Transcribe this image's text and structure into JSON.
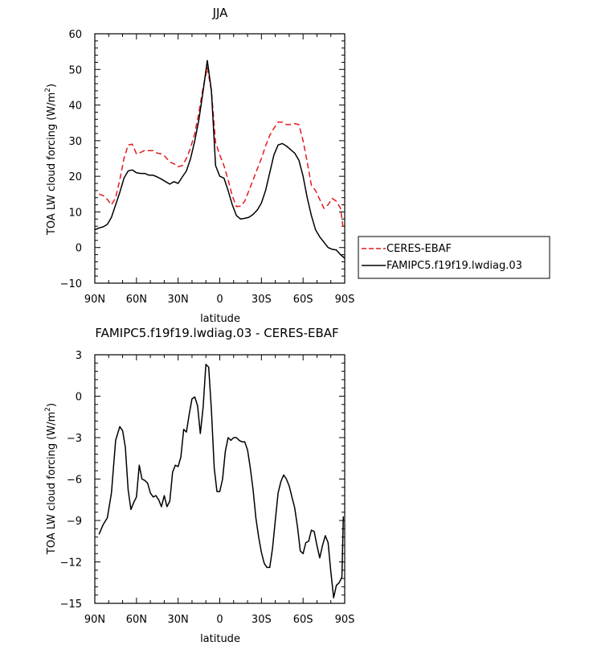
{
  "chart_data": [
    {
      "type": "line",
      "title": "JJA",
      "xlabel": "latitude",
      "ylabel": "TOA LW cloud forcing (W/m²)",
      "ylabel_main": "TOA LW cloud forcing (W/m",
      "ylabel_sup": "2",
      "ylabel_end": ")",
      "xlim": [
        90,
        -90
      ],
      "ylim": [
        -10,
        60
      ],
      "xticks": [
        90,
        60,
        30,
        0,
        -30,
        -60,
        -90
      ],
      "xtick_labels": [
        "90N",
        "60N",
        "30N",
        "0",
        "30S",
        "60S",
        "90S"
      ],
      "yticks": [
        -10,
        0,
        10,
        20,
        30,
        40,
        50,
        60
      ],
      "ytick_labels": [
        "−10",
        "0",
        "10",
        "20",
        "30",
        "40",
        "50",
        "60"
      ],
      "legend_position": "right",
      "series": [
        {
          "name": "CERES-EBAF",
          "color": "#e41a1c",
          "dash": "dashed",
          "x": [
            87,
            84,
            81,
            78,
            75,
            72,
            69,
            66,
            63,
            60,
            57,
            54,
            51,
            48,
            45,
            42,
            39,
            36,
            33,
            30,
            27,
            24,
            21,
            18,
            15,
            12,
            9,
            6,
            3,
            0,
            -3,
            -6,
            -9,
            -12,
            -15,
            -18,
            -21,
            -24,
            -27,
            -30,
            -33,
            -36,
            -39,
            -42,
            -45,
            -48,
            -51,
            -54,
            -57,
            -60,
            -63,
            -66,
            -69,
            -72,
            -75,
            -78,
            -81,
            -84,
            -87,
            -89
          ],
          "y": [
            15,
            14.6,
            13.5,
            12,
            14,
            19,
            25,
            28.8,
            29,
            26.3,
            26.7,
            27.3,
            27.2,
            27.2,
            26.5,
            26.3,
            25.4,
            24,
            23.5,
            22.7,
            23,
            25,
            28,
            32,
            38,
            45,
            50.5,
            44,
            29.5,
            26,
            23,
            19,
            14.5,
            11.5,
            11.6,
            13,
            16,
            19,
            22,
            25,
            28.5,
            31.5,
            33.5,
            35.2,
            35.2,
            34.5,
            34.5,
            34.8,
            34.5,
            30,
            24,
            17.5,
            16,
            13.5,
            11,
            12,
            13.8,
            13,
            11,
            5
          ]
        },
        {
          "name": "FAMIPC5.f19f19.lwdiag.03",
          "color": "#000000",
          "dash": "solid",
          "x": [
            90,
            87,
            84,
            81,
            78,
            75,
            72,
            69,
            66,
            63,
            60,
            57,
            54,
            51,
            48,
            45,
            42,
            39,
            36,
            33,
            30,
            27,
            24,
            21,
            18,
            15,
            12,
            9,
            6,
            3,
            0,
            -3,
            -6,
            -9,
            -12,
            -15,
            -18,
            -21,
            -24,
            -27,
            -30,
            -33,
            -36,
            -39,
            -42,
            -45,
            -48,
            -51,
            -54,
            -57,
            -60,
            -63,
            -66,
            -69,
            -72,
            -75,
            -78,
            -81,
            -84,
            -87,
            -90
          ],
          "y": [
            5,
            5.5,
            5.8,
            6.5,
            8.5,
            12,
            15.5,
            19.5,
            21.5,
            21.8,
            21,
            20.8,
            20.8,
            20.3,
            20.3,
            19.8,
            19.2,
            18.5,
            17.8,
            18.5,
            18,
            19.8,
            21.5,
            25,
            30,
            36,
            44,
            52.5,
            44,
            23,
            20,
            19.5,
            16,
            12,
            9,
            8,
            8.2,
            8.5,
            9.3,
            10.5,
            12.5,
            16,
            21,
            26,
            28.8,
            29.2,
            28.5,
            27.5,
            26.5,
            24.5,
            20,
            14,
            9,
            5,
            3,
            1.5,
            0,
            -0.5,
            -0.7,
            -2,
            -3
          ]
        }
      ]
    },
    {
      "type": "line",
      "title": "FAMIPC5.f19f19.lwdiag.03 - CERES-EBAF",
      "xlabel": "latitude",
      "ylabel": "TOA LW cloud forcing (W/m²)",
      "ylabel_main": "TOA LW cloud forcing (W/m",
      "ylabel_sup": "2",
      "ylabel_end": ")",
      "xlim": [
        90,
        -90
      ],
      "ylim": [
        -15,
        3
      ],
      "xticks": [
        90,
        60,
        30,
        0,
        -30,
        -60,
        -90
      ],
      "xtick_labels": [
        "90N",
        "60N",
        "30N",
        "0",
        "30S",
        "60S",
        "90S"
      ],
      "yticks": [
        -15,
        -12,
        -9,
        -6,
        -3,
        0,
        3
      ],
      "ytick_labels": [
        "−15",
        "−12",
        "−9",
        "−6",
        "−3",
        "0",
        "3"
      ],
      "series": [
        {
          "color": "#000000",
          "dash": "solid",
          "x": [
            87,
            84,
            81,
            78,
            75,
            72,
            70,
            68,
            66,
            64,
            62,
            60,
            58,
            56,
            54,
            52,
            50,
            48,
            46,
            44,
            42,
            40,
            38,
            36,
            34,
            32,
            30,
            28,
            26,
            24,
            22,
            20,
            18,
            16,
            14,
            12,
            10,
            8,
            6,
            4,
            2,
            0,
            -2,
            -4,
            -6,
            -8,
            -10,
            -12,
            -14,
            -16,
            -18,
            -20,
            -22,
            -24,
            -26,
            -28,
            -30,
            -32,
            -34,
            -36,
            -38,
            -40,
            -42,
            -44,
            -46,
            -48,
            -50,
            -52,
            -54,
            -56,
            -58,
            -60,
            -62,
            -64,
            -66,
            -68,
            -70,
            -72,
            -74,
            -76,
            -78,
            -80,
            -82,
            -84,
            -86,
            -88,
            -89
          ],
          "y": [
            -10,
            -9.3,
            -8.8,
            -7,
            -3.2,
            -2.2,
            -2.5,
            -3.7,
            -6.8,
            -8.2,
            -7.7,
            -7.3,
            -5,
            -6,
            -6.1,
            -6.3,
            -7,
            -7.3,
            -7.2,
            -7.5,
            -8,
            -7.2,
            -8,
            -7.6,
            -5.5,
            -5,
            -5.1,
            -4.4,
            -2.4,
            -2.6,
            -1.3,
            -0.2,
            -0.05,
            -0.7,
            -2.7,
            -0.8,
            2.3,
            2.1,
            -1,
            -5.2,
            -6.9,
            -6.9,
            -6,
            -4,
            -3,
            -3.2,
            -3,
            -3,
            -3.2,
            -3.3,
            -3.3,
            -3.9,
            -5.2,
            -6.8,
            -8.8,
            -10.2,
            -11.3,
            -12.1,
            -12.4,
            -12.4,
            -11,
            -9,
            -7,
            -6.2,
            -5.7,
            -6,
            -6.5,
            -7.3,
            -8.1,
            -9.5,
            -11.2,
            -11.4,
            -10.6,
            -10.5,
            -9.7,
            -9.8,
            -10.8,
            -11.7,
            -10.8,
            -10.1,
            -10.6,
            -12.7,
            -14.6,
            -13.7,
            -13.5,
            -13.1,
            -8.7
          ]
        }
      ]
    }
  ]
}
